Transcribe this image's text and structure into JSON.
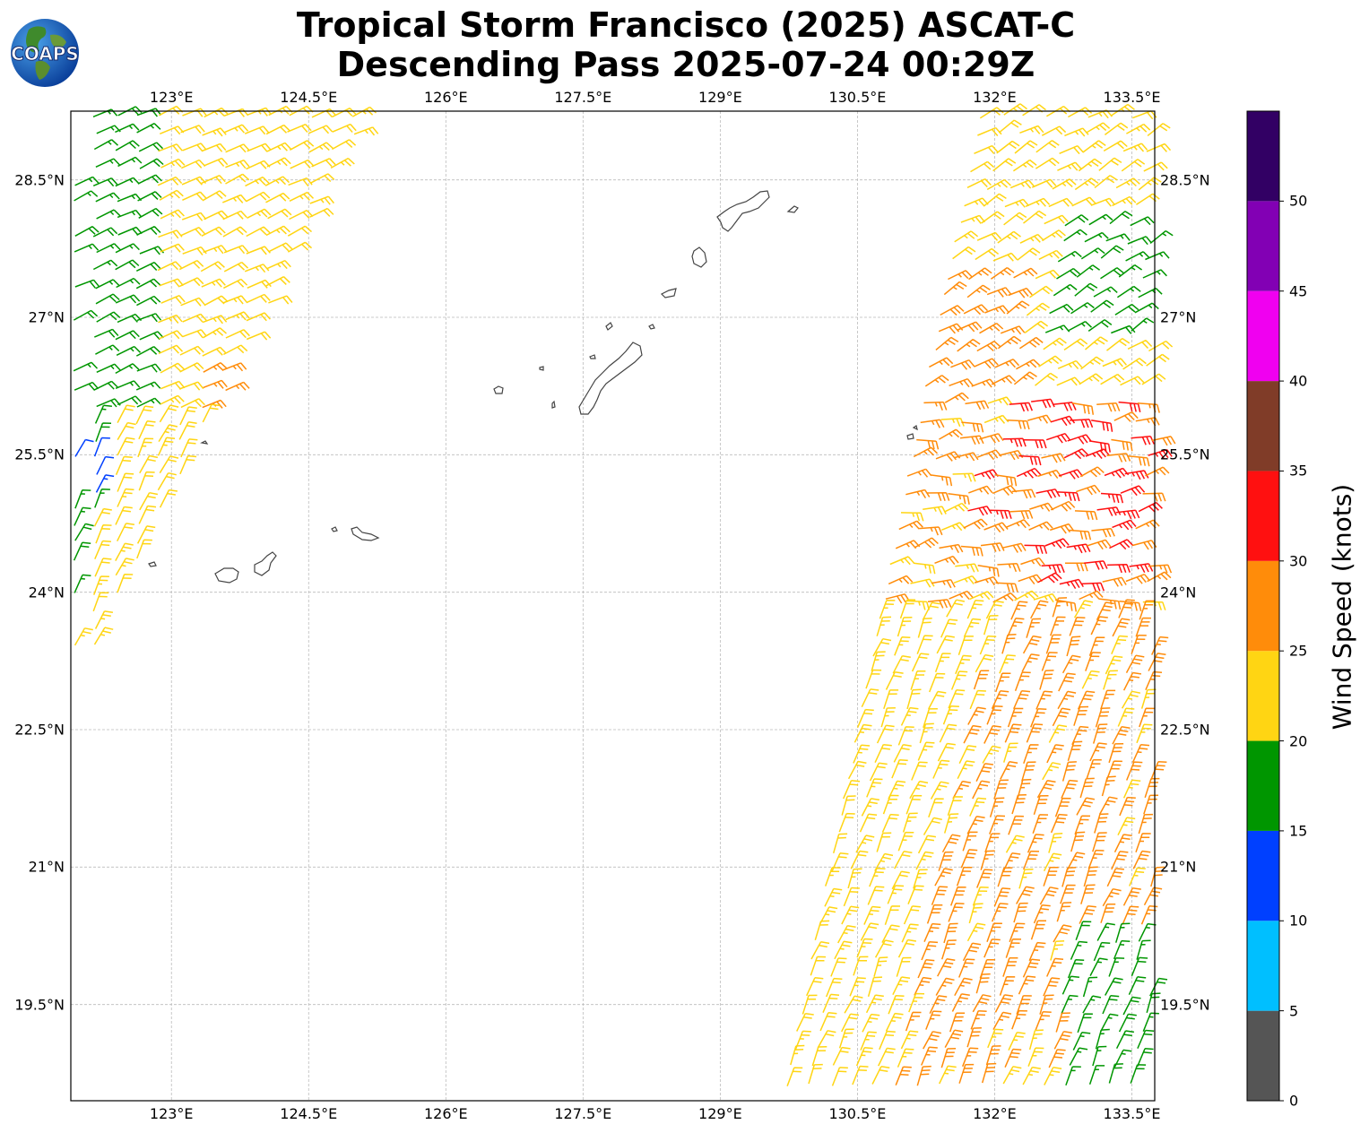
{
  "title": {
    "line1": "Tropical Storm Francisco (2025) ASCAT-C",
    "line2": "Descending Pass 2025-07-24 00:29Z"
  },
  "logo": {
    "text": "COAPS",
    "icon": "globe-logo-icon"
  },
  "map": {
    "lon_range": [
      121.9,
      133.75
    ],
    "lat_range": [
      18.45,
      29.25
    ],
    "lon_ticks": [
      "123°E",
      "124.5°E",
      "126°E",
      "127.5°E",
      "129°E",
      "130.5°E",
      "132°E",
      "133.5°E"
    ],
    "lat_ticks": [
      "28.5°N",
      "27°N",
      "25.5°N",
      "24°N",
      "22.5°N",
      "21°N",
      "19.5°N"
    ],
    "grid": true,
    "land_outline_color": "#444444",
    "wind_barbs": "ASCAT-C scatterometer wind barbs in two swaths (west and east of the Ryukyu Islands)"
  },
  "colorbar": {
    "title": "Wind Speed (knots)",
    "ticks": [
      "0",
      "5",
      "10",
      "15",
      "20",
      "25",
      "30",
      "35",
      "40",
      "45",
      "50"
    ],
    "bins": [
      {
        "from": 0,
        "to": 5,
        "color": "#555555"
      },
      {
        "from": 5,
        "to": 10,
        "color": "#00bfff"
      },
      {
        "from": 10,
        "to": 15,
        "color": "#0040ff"
      },
      {
        "from": 15,
        "to": 20,
        "color": "#009600"
      },
      {
        "from": 20,
        "to": 25,
        "color": "#ffd513"
      },
      {
        "from": 25,
        "to": 30,
        "color": "#ff8c0a"
      },
      {
        "from": 30,
        "to": 35,
        "color": "#ff1010"
      },
      {
        "from": 35,
        "to": 40,
        "color": "#803c28"
      },
      {
        "from": 40,
        "to": 45,
        "color": "#f000f0"
      },
      {
        "from": 45,
        "to": 50,
        "color": "#8200b4"
      },
      {
        "from": 50,
        "to": 55,
        "color": "#320064"
      }
    ]
  }
}
